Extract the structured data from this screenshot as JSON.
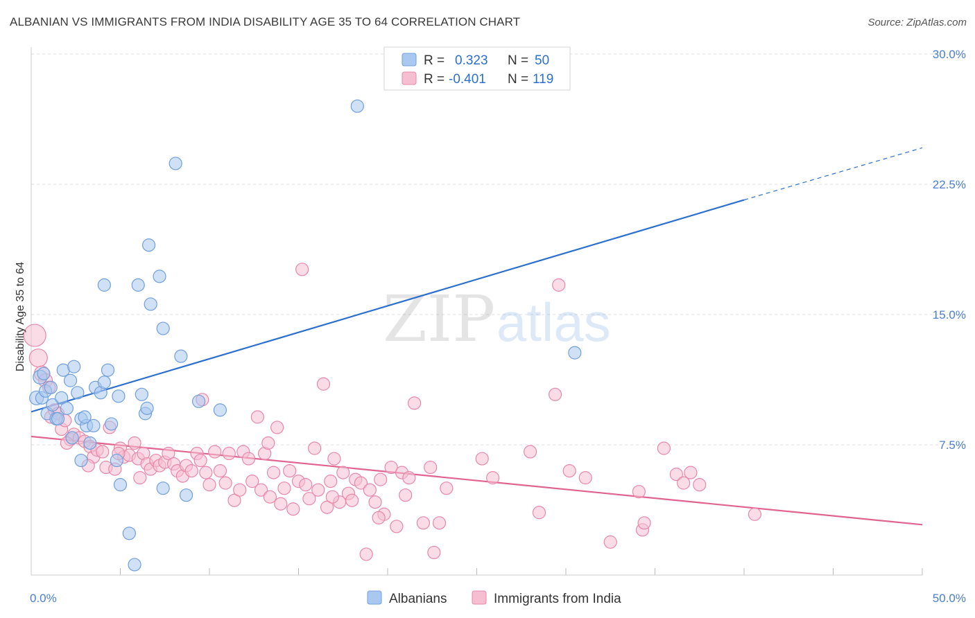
{
  "header": {
    "title": "ALBANIAN VS IMMIGRANTS FROM INDIA DISABILITY AGE 35 TO 64 CORRELATION CHART",
    "source": "Source: ZipAtlas.com"
  },
  "watermark": {
    "zip": "ZIP",
    "atlas": "atlas"
  },
  "legend_top": {
    "rows": [
      {
        "r_label": "R =",
        "r_value": "0.323",
        "n_label": "N =",
        "n_value": "50"
      },
      {
        "r_label": "R =",
        "r_value": "-0.401",
        "n_label": "N =",
        "n_value": "119"
      }
    ]
  },
  "legend_bottom": {
    "items": [
      "Albanians",
      "Immigrants from India"
    ]
  },
  "colors": {
    "blue_fill": "#a9c8ef",
    "blue_stroke": "#6f9fdc",
    "blue_line": "#2b6fcf",
    "pink_fill": "#f6bfd1",
    "pink_stroke": "#e887a8",
    "pink_line": "#e0648f",
    "tick_text": "#4a7fd0",
    "grid": "#dddddd"
  },
  "chart_data": {
    "type": "scatter",
    "title": "ALBANIAN VS IMMIGRANTS FROM INDIA DISABILITY AGE 35 TO 64 CORRELATION CHART",
    "xlabel": "",
    "ylabel": "Disability Age 35 to 64",
    "xlim": [
      0,
      50
    ],
    "ylim": [
      0,
      30
    ],
    "x_tick_labels": [
      "0.0%",
      "50.0%"
    ],
    "y_ticks": [
      7.5,
      15.0,
      22.5,
      30.0
    ],
    "y_tick_labels": [
      "7.5%",
      "15.0%",
      "22.5%",
      "30.0%"
    ],
    "grid": true,
    "legend_position": "top-center",
    "series": [
      {
        "name": "Albanians",
        "r": 0.323,
        "n": 50,
        "trend": {
          "x": [
            0,
            40
          ],
          "y": [
            9.4,
            21.6
          ]
        },
        "trend_extension": {
          "x": [
            40,
            50
          ],
          "y": [
            21.6,
            24.6
          ]
        },
        "points": [
          [
            0.3,
            10.2,
            10
          ],
          [
            0.5,
            11.4,
            10
          ],
          [
            0.6,
            10.2,
            9
          ],
          [
            0.8,
            10.6,
            9
          ],
          [
            0.9,
            9.3,
            9
          ],
          [
            1.1,
            10.8,
            9
          ],
          [
            1.2,
            9.8,
            9
          ],
          [
            1.4,
            9.0,
            9
          ],
          [
            1.7,
            10.2,
            9
          ],
          [
            1.8,
            11.8,
            9
          ],
          [
            2.0,
            9.6,
            9
          ],
          [
            2.2,
            11.2,
            9
          ],
          [
            2.4,
            12.0,
            9
          ],
          [
            2.6,
            10.5,
            9
          ],
          [
            2.8,
            9.0,
            9
          ],
          [
            3.1,
            8.6,
            9
          ],
          [
            3.3,
            7.6,
            9
          ],
          [
            3.6,
            10.8,
            9
          ],
          [
            3.9,
            10.5,
            9
          ],
          [
            4.1,
            11.1,
            9
          ],
          [
            4.3,
            11.8,
            9
          ],
          [
            4.5,
            8.7,
            9
          ],
          [
            4.8,
            6.6,
            9
          ],
          [
            4.9,
            10.3,
            9
          ],
          [
            5.0,
            5.2,
            9
          ],
          [
            5.5,
            2.4,
            9
          ],
          [
            6.0,
            16.7,
            9
          ],
          [
            6.2,
            10.4,
            9
          ],
          [
            6.4,
            9.3,
            9
          ],
          [
            6.5,
            9.6,
            9
          ],
          [
            6.6,
            19.0,
            9
          ],
          [
            6.7,
            15.6,
            9
          ],
          [
            7.2,
            17.2,
            9
          ],
          [
            7.4,
            14.2,
            9
          ],
          [
            7.4,
            5.0,
            9
          ],
          [
            8.1,
            23.7,
            9
          ],
          [
            8.4,
            12.6,
            9
          ],
          [
            8.7,
            4.6,
            9
          ],
          [
            9.4,
            10.0,
            9
          ],
          [
            10.6,
            9.5,
            9
          ],
          [
            2.8,
            6.6,
            9
          ],
          [
            4.1,
            16.7,
            9
          ],
          [
            5.8,
            0.6,
            9
          ],
          [
            18.3,
            27.0,
            9
          ],
          [
            30.5,
            12.8,
            9
          ],
          [
            1.5,
            9.0,
            9
          ],
          [
            0.7,
            11.6,
            9
          ],
          [
            3.0,
            9.1,
            9
          ],
          [
            2.3,
            7.9,
            9
          ],
          [
            3.5,
            8.6,
            9
          ]
        ]
      },
      {
        "name": "Immigrants from India",
        "r": -0.401,
        "n": 119,
        "trend": {
          "x": [
            0,
            50
          ],
          "y": [
            7.98,
            2.9
          ]
        },
        "points": [
          [
            0.2,
            13.8,
            16
          ],
          [
            0.4,
            12.5,
            13
          ],
          [
            0.6,
            11.6,
            11
          ],
          [
            0.8,
            11.2,
            10
          ],
          [
            1.0,
            10.8,
            9
          ],
          [
            1.1,
            9.1,
            9
          ],
          [
            1.3,
            9.5,
            9
          ],
          [
            1.5,
            9.3,
            9
          ],
          [
            1.7,
            8.4,
            9
          ],
          [
            1.9,
            8.9,
            9
          ],
          [
            2.2,
            7.8,
            9
          ],
          [
            2.4,
            8.1,
            9
          ],
          [
            2.7,
            7.9,
            9
          ],
          [
            3.0,
            7.7,
            9
          ],
          [
            3.3,
            7.4,
            9
          ],
          [
            3.5,
            6.8,
            9
          ],
          [
            3.7,
            7.2,
            9
          ],
          [
            4.0,
            7.1,
            9
          ],
          [
            4.2,
            6.2,
            9
          ],
          [
            4.4,
            8.5,
            9
          ],
          [
            4.7,
            6.1,
            9
          ],
          [
            5.0,
            7.3,
            9
          ],
          [
            5.2,
            6.8,
            9
          ],
          [
            5.5,
            6.9,
            9
          ],
          [
            5.8,
            7.6,
            9
          ],
          [
            6.0,
            6.7,
            9
          ],
          [
            6.3,
            7.0,
            9
          ],
          [
            6.5,
            6.4,
            9
          ],
          [
            6.7,
            6.1,
            9
          ],
          [
            7.0,
            6.6,
            9
          ],
          [
            7.2,
            6.3,
            9
          ],
          [
            7.5,
            6.5,
            9
          ],
          [
            7.7,
            7.0,
            9
          ],
          [
            8.0,
            6.4,
            9
          ],
          [
            8.2,
            6.0,
            9
          ],
          [
            8.5,
            5.7,
            9
          ],
          [
            8.7,
            6.3,
            9
          ],
          [
            9.0,
            6.0,
            9
          ],
          [
            9.3,
            7.0,
            9
          ],
          [
            9.5,
            6.6,
            9
          ],
          [
            9.8,
            5.9,
            9
          ],
          [
            10.0,
            5.2,
            9
          ],
          [
            10.3,
            7.1,
            9
          ],
          [
            10.6,
            6.0,
            9
          ],
          [
            10.9,
            5.3,
            9
          ],
          [
            11.1,
            7.0,
            9
          ],
          [
            11.4,
            4.3,
            9
          ],
          [
            11.7,
            4.9,
            9
          ],
          [
            11.9,
            7.1,
            9
          ],
          [
            12.2,
            6.7,
            9
          ],
          [
            12.4,
            5.4,
            9
          ],
          [
            12.7,
            9.1,
            9
          ],
          [
            12.9,
            4.9,
            9
          ],
          [
            13.1,
            7.0,
            9
          ],
          [
            13.3,
            7.6,
            9
          ],
          [
            13.6,
            5.9,
            9
          ],
          [
            13.8,
            8.5,
            9
          ],
          [
            14.0,
            4.1,
            9
          ],
          [
            14.2,
            5.0,
            9
          ],
          [
            14.5,
            6.0,
            9
          ],
          [
            14.7,
            3.8,
            9
          ],
          [
            15.0,
            5.4,
            9
          ],
          [
            15.2,
            17.6,
            9
          ],
          [
            15.4,
            5.2,
            9
          ],
          [
            15.6,
            4.4,
            9
          ],
          [
            15.9,
            7.3,
            9
          ],
          [
            16.1,
            4.9,
            9
          ],
          [
            16.4,
            11.0,
            9
          ],
          [
            16.6,
            3.9,
            9
          ],
          [
            16.8,
            5.4,
            9
          ],
          [
            17.0,
            6.7,
            9
          ],
          [
            17.3,
            4.2,
            9
          ],
          [
            17.5,
            5.9,
            9
          ],
          [
            17.8,
            4.7,
            9
          ],
          [
            18.0,
            4.3,
            9
          ],
          [
            18.2,
            5.5,
            9
          ],
          [
            18.5,
            5.3,
            9
          ],
          [
            18.8,
            1.2,
            9
          ],
          [
            19.0,
            4.9,
            9
          ],
          [
            19.3,
            4.2,
            9
          ],
          [
            19.6,
            5.5,
            9
          ],
          [
            19.8,
            3.5,
            9
          ],
          [
            20.2,
            6.2,
            9
          ],
          [
            20.5,
            2.8,
            9
          ],
          [
            20.8,
            5.9,
            9
          ],
          [
            21.2,
            5.6,
            9
          ],
          [
            21.5,
            9.9,
            9
          ],
          [
            22.0,
            3.0,
            9
          ],
          [
            22.4,
            6.2,
            9
          ],
          [
            22.6,
            1.3,
            9
          ],
          [
            22.9,
            3.0,
            9
          ],
          [
            23.3,
            5.0,
            9
          ],
          [
            25.3,
            6.7,
            9
          ],
          [
            25.9,
            5.6,
            9
          ],
          [
            28.0,
            7.1,
            9
          ],
          [
            28.5,
            3.6,
            9
          ],
          [
            29.4,
            10.4,
            9
          ],
          [
            29.6,
            16.7,
            9
          ],
          [
            30.2,
            6.0,
            9
          ],
          [
            31.1,
            5.6,
            9
          ],
          [
            32.5,
            1.9,
            9
          ],
          [
            34.1,
            4.8,
            9
          ],
          [
            34.3,
            2.6,
            9
          ],
          [
            34.4,
            3.0,
            9
          ],
          [
            35.5,
            7.3,
            9
          ],
          [
            36.2,
            5.8,
            9
          ],
          [
            36.6,
            5.3,
            9
          ],
          [
            37.0,
            5.9,
            9
          ],
          [
            37.5,
            5.2,
            9
          ],
          [
            40.6,
            3.5,
            9
          ],
          [
            2.0,
            7.6,
            9
          ],
          [
            3.2,
            6.3,
            9
          ],
          [
            4.9,
            7.0,
            9
          ],
          [
            6.1,
            5.6,
            9
          ],
          [
            9.6,
            10.1,
            9
          ],
          [
            13.4,
            4.5,
            9
          ],
          [
            16.9,
            4.5,
            9
          ],
          [
            19.5,
            3.3,
            9
          ],
          [
            21.0,
            4.6,
            9
          ]
        ]
      }
    ]
  }
}
